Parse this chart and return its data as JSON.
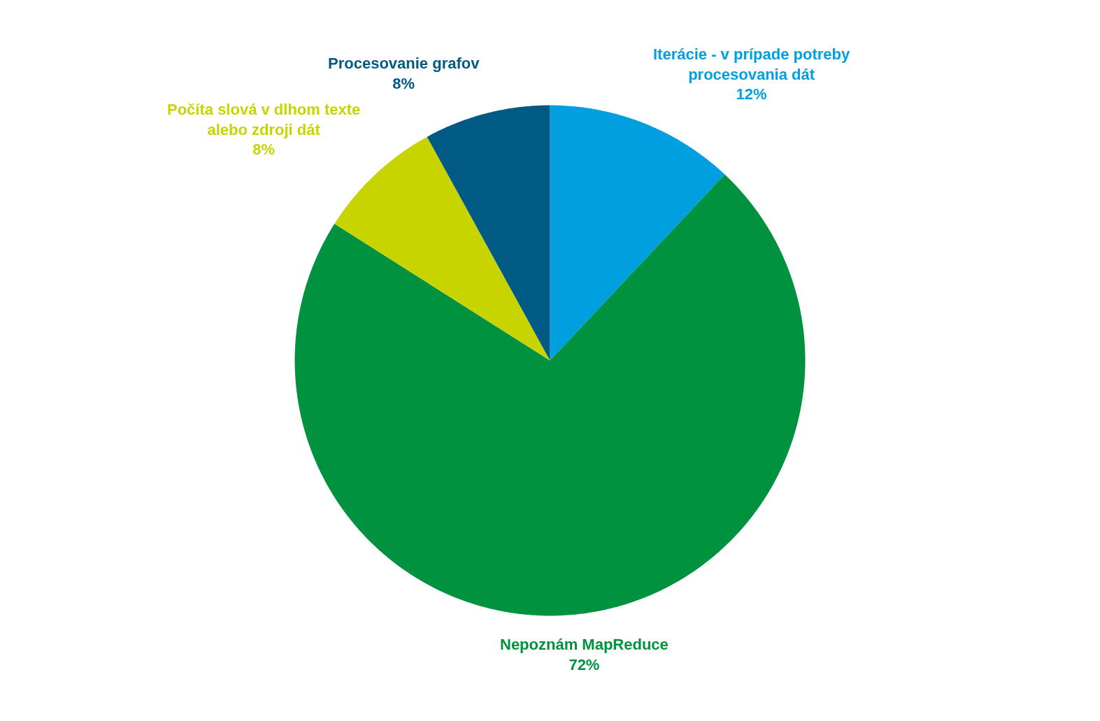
{
  "chart_data": {
    "type": "pie",
    "categories": [
      "Iterácie - v prípade potreby procesovania dát",
      "Nepoznám MapReduce",
      "Počíta slová v dlhom texte alebo zdroji dát",
      "Procesovanie grafov"
    ],
    "values": [
      12,
      72,
      8,
      8
    ],
    "value_labels": [
      "12%",
      "72%",
      "8%",
      "8%"
    ],
    "colors": [
      "#009fe0",
      "#00923f",
      "#c8d400",
      "#005a84"
    ]
  }
}
